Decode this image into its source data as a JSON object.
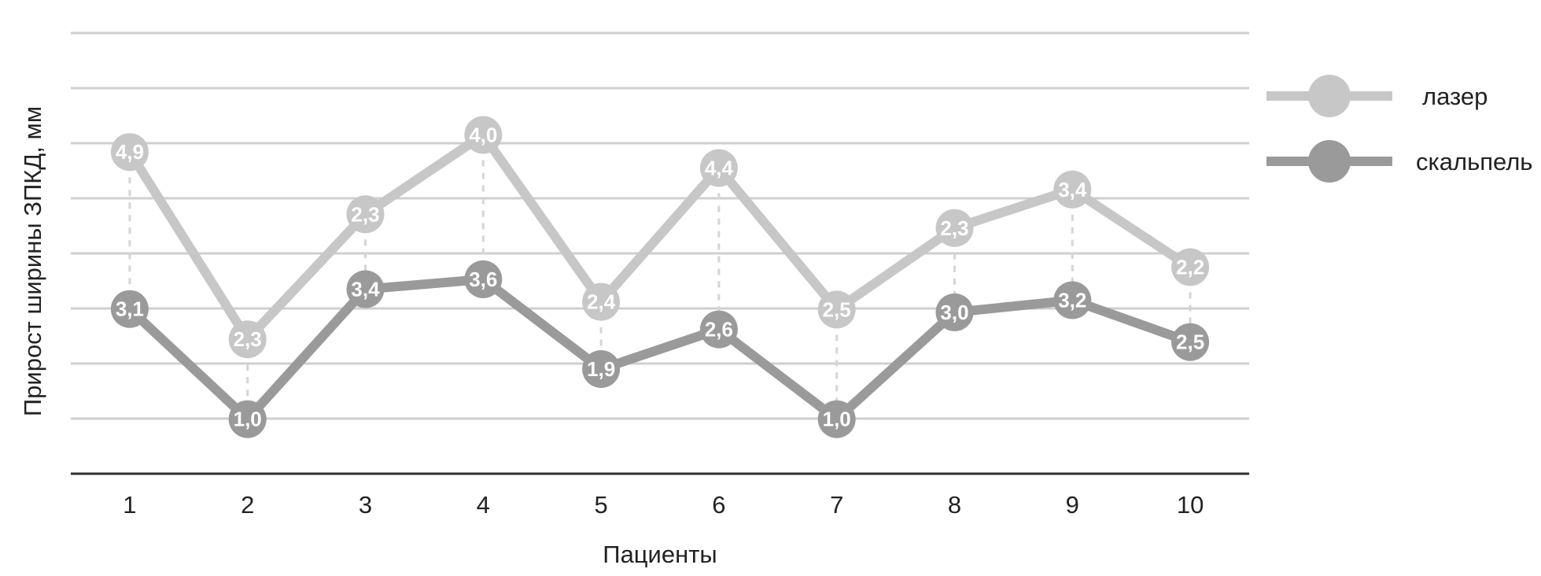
{
  "chart_data": {
    "type": "line",
    "categories": [
      "1",
      "2",
      "3",
      "4",
      "5",
      "6",
      "7",
      "8",
      "9",
      "10"
    ],
    "series": [
      {
        "name": "лазер",
        "values": [
          4.9,
          2.3,
          2.3,
          4.0,
          2.4,
          4.4,
          2.5,
          2.3,
          3.4,
          2.2
        ],
        "positions": [
          5.84,
          2.44,
          4.71,
          6.15,
          3.12,
          5.55,
          2.98,
          4.46,
          5.16,
          3.75
        ],
        "labels": [
          "4,9",
          "2,3",
          "2,3",
          "4,0",
          "2,4",
          "4,4",
          "2,5",
          "2,3",
          "3,4",
          "2,2"
        ],
        "color": "#c7c7c7"
      },
      {
        "name": "скальпель",
        "values": [
          3.1,
          1.0,
          3.4,
          3.6,
          1.9,
          2.6,
          1.0,
          3.0,
          3.2,
          2.5
        ],
        "positions": [
          2.99,
          0.99,
          3.35,
          3.53,
          1.9,
          2.62,
          0.99,
          2.93,
          3.15,
          2.39
        ],
        "labels": [
          "3,1",
          "1,0",
          "3,4",
          "3,6",
          "1,9",
          "2,6",
          "1,0",
          "3,0",
          "3,2",
          "2,5"
        ],
        "color": "#9a9a9a"
      }
    ],
    "xlabel": "Пациенты",
    "ylabel": "Прирост ширины ЗПКД, мм",
    "ylim": [
      0,
      8
    ],
    "grid": true,
    "legend": "right"
  }
}
